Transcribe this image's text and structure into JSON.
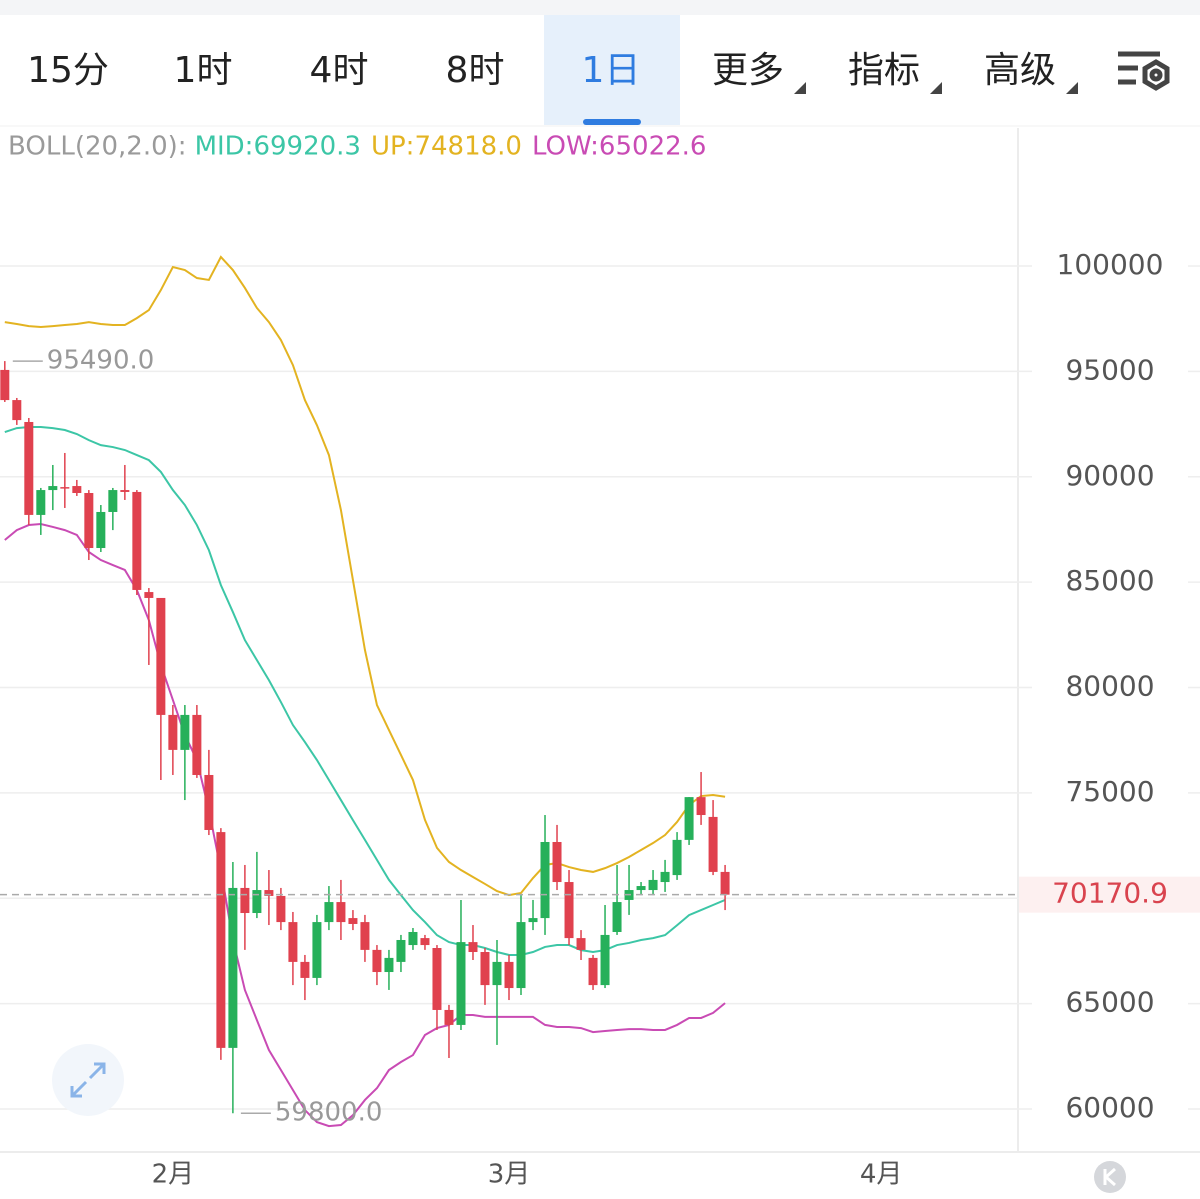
{
  "tabs": [
    "15分",
    "1时",
    "4时",
    "8时",
    "1日",
    "更多",
    "指标",
    "高级"
  ],
  "chart_data": {
    "type": "candlestick",
    "indicator_label": "BOLL(20,2.0):",
    "x": [
      0,
      1,
      2,
      3,
      4,
      5,
      6,
      7,
      8,
      9,
      10,
      11,
      12,
      13,
      14,
      15,
      16,
      17,
      18,
      19,
      20,
      21,
      22,
      23,
      24,
      25,
      26,
      27,
      28,
      29,
      30,
      31,
      32,
      33,
      34,
      35,
      36,
      37,
      38,
      39,
      40,
      41,
      42,
      43,
      44,
      45,
      46,
      47,
      48,
      49,
      50,
      51,
      52,
      53,
      54,
      55,
      56,
      57,
      58,
      59,
      60
    ],
    "open": [
      95070,
      93640,
      92600,
      88190,
      89370,
      89510,
      89560,
      89230,
      86620,
      88330,
      89370,
      89280,
      84530,
      84250,
      78700,
      77040,
      78700,
      75850,
      73140,
      62900,
      70490,
      69300,
      70390,
      70110,
      68870,
      66980,
      66220,
      68870,
      69820,
      69060,
      68870,
      67550,
      66500,
      66980,
      67780,
      68110,
      67640,
      64700,
      63990,
      67920,
      67450,
      65880,
      66980,
      65740,
      68870,
      69060,
      72670,
      70770,
      68110,
      67170,
      65880,
      68400,
      69920,
      70390,
      70390,
      70770,
      71100,
      72770,
      74800,
      73860,
      71250
    ],
    "high": [
      95490,
      93740,
      92790,
      89470,
      90560,
      91130,
      89850,
      89370,
      88660,
      89470,
      90560,
      89370,
      84720,
      84250,
      79170,
      79170,
      79170,
      77040,
      73330,
      71720,
      71580,
      72200,
      71340,
      70490,
      69350,
      67310,
      69210,
      70580,
      70870,
      69440,
      69210,
      67780,
      67550,
      68260,
      68590,
      68260,
      67780,
      64940,
      69920,
      68730,
      67640,
      68020,
      67310,
      70150,
      69920,
      73950,
      73480,
      71340,
      68490,
      67310,
      69680,
      71580,
      71580,
      70770,
      71340,
      71820,
      73140,
      74800,
      75990,
      74660,
      71580
    ],
    "low": [
      93550,
      92460,
      87710,
      87240,
      88420,
      88520,
      89090,
      86050,
      86430,
      87470,
      88900,
      84390,
      81070,
      75610,
      75850,
      74660,
      75710,
      73000,
      62330,
      59800,
      67550,
      69060,
      68730,
      68490,
      65880,
      65170,
      65880,
      68490,
      68020,
      68490,
      66980,
      65880,
      65650,
      66500,
      67550,
      67550,
      63750,
      62420,
      63750,
      67070,
      64940,
      63040,
      65170,
      65410,
      68490,
      68260,
      70390,
      67780,
      67070,
      65650,
      65740,
      68260,
      69210,
      70150,
      70150,
      70300,
      70870,
      72530,
      73480,
      71100,
      69440
    ],
    "close": [
      93640,
      92690,
      88190,
      89370,
      89560,
      89470,
      89230,
      86620,
      88330,
      89370,
      89280,
      84630,
      84250,
      78700,
      77040,
      78700,
      75850,
      73240,
      62900,
      70490,
      69300,
      70390,
      70110,
      68870,
      66980,
      66220,
      68870,
      69820,
      68870,
      68780,
      67550,
      66500,
      67170,
      68020,
      68400,
      67780,
      64700,
      63990,
      67920,
      67450,
      65880,
      66980,
      65740,
      68870,
      69060,
      72670,
      70770,
      68110,
      67550,
      65880,
      68260,
      69820,
      70390,
      70580,
      70870,
      71250,
      72770,
      74800,
      73950,
      71250,
      70170.9
    ],
    "up_color": "#26b05a",
    "down_color": "#e0414e",
    "series": [
      {
        "name": "MID:69920.3",
        "color": "#3cc6a6",
        "values": [
          92120,
          92310,
          92360,
          92360,
          92310,
          92220,
          92030,
          91740,
          91500,
          91410,
          91270,
          91030,
          90790,
          90230,
          89370,
          88660,
          87710,
          86520,
          84860,
          83580,
          82250,
          81300,
          80350,
          79310,
          78220,
          77410,
          76560,
          75610,
          74660,
          73710,
          72770,
          71820,
          70870,
          70150,
          69440,
          68870,
          68250,
          67920,
          67780,
          67780,
          67640,
          67450,
          67310,
          67310,
          67450,
          67690,
          67780,
          67780,
          67540,
          67450,
          67540,
          67780,
          67880,
          68020,
          68110,
          68250,
          68720,
          69200,
          69440,
          69680,
          69920.3
        ]
      },
      {
        "name": "UP:74818.0",
        "color": "#e3b321",
        "values": [
          97340,
          97250,
          97150,
          97110,
          97150,
          97200,
          97250,
          97340,
          97250,
          97200,
          97200,
          97530,
          97910,
          98860,
          99950,
          99810,
          99430,
          99340,
          100430,
          99810,
          98960,
          98010,
          97340,
          96490,
          95300,
          93640,
          92450,
          91030,
          88420,
          85100,
          81780,
          79170,
          77980,
          76800,
          75610,
          73720,
          72390,
          71720,
          71340,
          71010,
          70680,
          70340,
          70150,
          70250,
          70960,
          71580,
          71670,
          71480,
          71340,
          71250,
          71430,
          71670,
          71960,
          72290,
          72620,
          73000,
          73620,
          74430,
          74850,
          74900,
          74818
        ]
      },
      {
        "name": "LOW:65022.6",
        "color": "#c94bb4",
        "values": [
          87000,
          87470,
          87710,
          87760,
          87620,
          87470,
          87240,
          86430,
          86050,
          85810,
          85580,
          84630,
          83200,
          81070,
          79410,
          77750,
          76560,
          74190,
          71340,
          68020,
          65650,
          64220,
          62800,
          61850,
          60900,
          59950,
          59380,
          59190,
          59240,
          59710,
          60430,
          60990,
          61850,
          62230,
          62560,
          63510,
          63840,
          63990,
          64460,
          64460,
          64370,
          64370,
          64370,
          64370,
          64370,
          63990,
          63890,
          63890,
          63840,
          63650,
          63700,
          63750,
          63790,
          63790,
          63750,
          63750,
          63990,
          64320,
          64320,
          64560,
          65022.6
        ]
      }
    ],
    "max_marker": {
      "value": 95490,
      "label": "95490.0"
    },
    "min_marker": {
      "value": 59800,
      "label": "59800.0"
    },
    "current_price": 70170.9,
    "xlim": [
      -0.4,
      84.4
    ],
    "xticks": [
      {
        "value": 14,
        "label": "2月"
      },
      {
        "value": 42,
        "label": "3月"
      },
      {
        "value": 73,
        "label": "4月"
      }
    ],
    "ylim": [
      57960,
      106550
    ],
    "yticks": [
      60000,
      65000,
      70000,
      75000,
      80000,
      85000,
      90000,
      95000,
      100000
    ],
    "grid": true
  }
}
